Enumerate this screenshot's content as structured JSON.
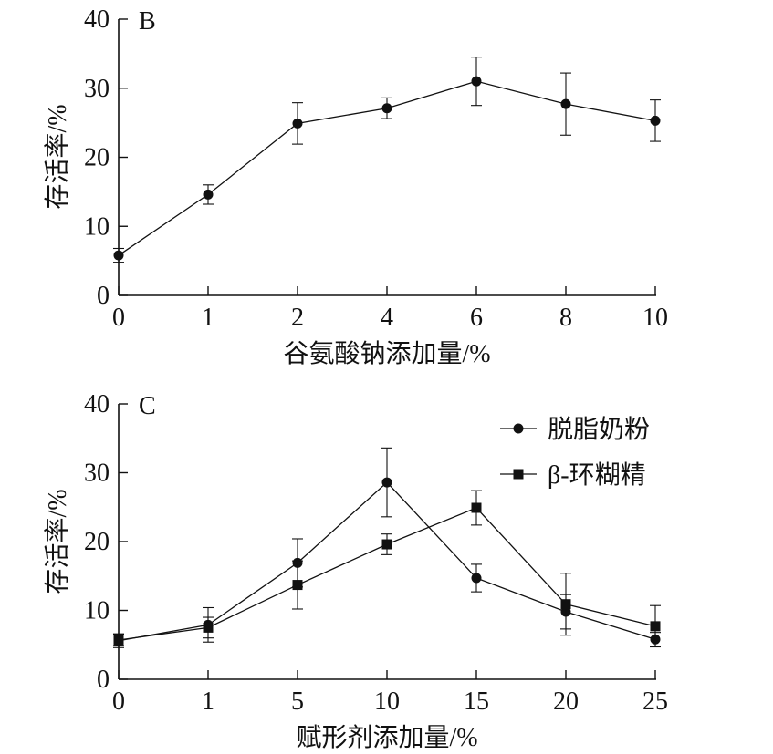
{
  "chart_data": [
    {
      "type": "line",
      "panel_label": "B",
      "xlabel": "谷氨酸钠添加量/%",
      "ylabel": "存活率/%",
      "categories": [
        "0",
        "1",
        "2",
        "4",
        "6",
        "8",
        "10"
      ],
      "ylim": [
        0,
        40
      ],
      "yticks": [
        "0",
        "10",
        "20",
        "30",
        "40"
      ],
      "x_scale": "categorical (evenly spaced ticks)",
      "grid": false,
      "legend": "none",
      "series": [
        {
          "marker": "circle",
          "values": [
            5.8,
            14.6,
            24.9,
            27.1,
            31.0,
            27.7,
            25.3
          ],
          "errors": [
            1.0,
            1.4,
            3.0,
            1.5,
            3.5,
            4.5,
            3.0
          ]
        }
      ]
    },
    {
      "type": "line",
      "panel_label": "C",
      "xlabel": "赋形剂添加量/%",
      "ylabel": "存活率/%",
      "categories": [
        "0",
        "1",
        "5",
        "10",
        "15",
        "20",
        "25"
      ],
      "ylim": [
        0,
        40
      ],
      "yticks": [
        "0",
        "10",
        "20",
        "30",
        "40"
      ],
      "x_scale": "categorical (evenly spaced ticks)",
      "grid": false,
      "legend": "top-right",
      "series": [
        {
          "name": "脱脂奶粉",
          "marker": "circle",
          "values": [
            5.6,
            7.9,
            16.9,
            28.6,
            14.7,
            9.8,
            5.8
          ],
          "errors": [
            1.0,
            2.5,
            3.5,
            5.0,
            2.0,
            2.5,
            1.0
          ]
        },
        {
          "name": "β-环糊精",
          "marker": "square",
          "values": [
            5.7,
            7.5,
            13.7,
            19.6,
            24.9,
            10.9,
            7.7
          ],
          "errors": [
            0.8,
            1.5,
            3.5,
            1.5,
            2.5,
            4.5,
            3.0
          ]
        }
      ]
    }
  ]
}
